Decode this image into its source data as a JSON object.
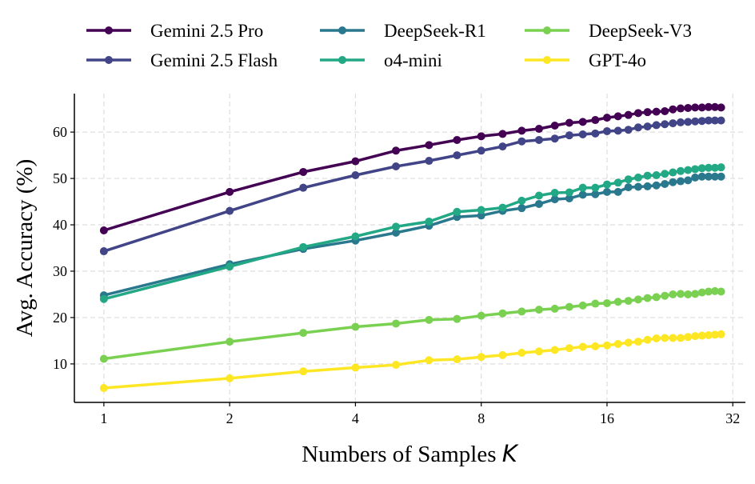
{
  "chart_data": {
    "type": "line",
    "title": "",
    "xlabel": "Numbers of Samples",
    "xlabel_var": "K",
    "ylabel": "Avg. Accuracy (%)",
    "xscale": "log2",
    "xlim": [
      0.85,
      34.3
    ],
    "ylim": [
      1.7,
      68.3
    ],
    "xticks": [
      1,
      2,
      4,
      8,
      16,
      32
    ],
    "yticks": [
      10,
      20,
      30,
      40,
      50,
      60
    ],
    "grid": true,
    "legend_position": "top",
    "x": [
      1,
      2,
      3,
      4,
      5,
      6,
      7,
      8,
      9,
      10,
      11,
      12,
      13,
      14,
      15,
      16,
      17,
      18,
      19,
      20,
      21,
      22,
      23,
      24,
      25,
      26,
      27,
      28,
      29,
      30
    ],
    "series": [
      {
        "name": "Gemini 2.5 Pro",
        "color": "#440154",
        "values": [
          38.8,
          47.1,
          51.4,
          53.7,
          56.0,
          57.2,
          58.3,
          59.1,
          59.6,
          60.3,
          60.7,
          61.4,
          62.0,
          62.2,
          62.6,
          63.1,
          63.4,
          63.7,
          64.1,
          64.3,
          64.4,
          64.5,
          64.9,
          65.1,
          65.2,
          65.3,
          65.3,
          65.4,
          65.4,
          65.3
        ]
      },
      {
        "name": "Gemini 2.5 Flash",
        "color": "#414487",
        "values": [
          34.3,
          43.0,
          48.0,
          50.7,
          52.6,
          53.8,
          55.0,
          56.0,
          56.9,
          58.0,
          58.3,
          58.6,
          59.3,
          59.5,
          59.7,
          60.2,
          60.3,
          60.5,
          61.0,
          61.2,
          61.5,
          61.7,
          61.9,
          62.1,
          62.2,
          62.3,
          62.4,
          62.5,
          62.5,
          62.5
        ]
      },
      {
        "name": "DeepSeek-R1",
        "color": "#2a788e",
        "values": [
          24.8,
          31.5,
          34.8,
          36.6,
          38.3,
          39.8,
          41.7,
          42.0,
          43.0,
          43.6,
          44.5,
          45.5,
          45.7,
          46.5,
          46.6,
          47.1,
          47.1,
          48.1,
          48.2,
          48.3,
          48.5,
          48.8,
          49.2,
          49.4,
          49.6,
          50.2,
          50.4,
          50.4,
          50.4,
          50.4
        ]
      },
      {
        "name": "o4-mini",
        "color": "#22a884",
        "values": [
          24.0,
          31.0,
          35.2,
          37.5,
          39.6,
          40.7,
          42.8,
          43.2,
          43.7,
          45.2,
          46.3,
          46.9,
          47.0,
          48.0,
          48.0,
          48.7,
          49.1,
          49.8,
          50.2,
          50.6,
          50.7,
          51.0,
          51.3,
          51.6,
          51.8,
          52.0,
          52.2,
          52.3,
          52.3,
          52.4
        ]
      },
      {
        "name": "DeepSeek-V3",
        "color": "#7ad151",
        "values": [
          11.1,
          14.8,
          16.7,
          18.0,
          18.7,
          19.5,
          19.7,
          20.4,
          20.9,
          21.3,
          21.7,
          21.9,
          22.3,
          22.6,
          23.0,
          23.1,
          23.4,
          23.6,
          23.9,
          24.2,
          24.4,
          24.7,
          25.0,
          25.1,
          25.0,
          25.1,
          25.4,
          25.6,
          25.7,
          25.6
        ]
      },
      {
        "name": "GPT-4o",
        "color": "#fde725",
        "values": [
          4.8,
          6.9,
          8.4,
          9.2,
          9.8,
          10.8,
          11.0,
          11.5,
          11.9,
          12.4,
          12.7,
          13.0,
          13.4,
          13.7,
          13.8,
          14.0,
          14.3,
          14.6,
          14.8,
          15.2,
          15.5,
          15.6,
          15.6,
          15.6,
          15.8,
          16.0,
          16.1,
          16.2,
          16.3,
          16.4
        ]
      }
    ]
  }
}
